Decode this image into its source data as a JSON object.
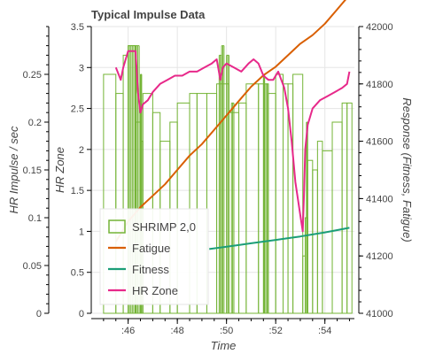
{
  "chart_data": {
    "type": "bar+line",
    "title": "Typical Impulse Data",
    "x_label": "Time",
    "x_ticks": [
      ":46",
      ":48",
      ":50",
      ":52",
      ":54"
    ],
    "x_tick_values": [
      46,
      48,
      50,
      52,
      54
    ],
    "x_range": [
      44.5,
      55.2
    ],
    "y_axes": {
      "outer_left": {
        "label": "HR Impulse / sec",
        "range": [
          0,
          0.3
        ],
        "ticks": [
          "0",
          "0.05",
          "0.1",
          "0.15",
          "0.2",
          "0.25"
        ],
        "tick_values": [
          0,
          0.05,
          0.1,
          0.15,
          0.2,
          0.25
        ]
      },
      "inner_left": {
        "label": "HR Zone",
        "range": [
          0,
          3.5
        ],
        "ticks": [
          "0",
          "0.5",
          "1",
          "1.5",
          "2",
          "2.5",
          "3",
          "3.5"
        ],
        "tick_values": [
          0,
          0.5,
          1,
          1.5,
          2,
          2.5,
          3,
          3.5
        ]
      },
      "right": {
        "label": "Response (Fitness, Fatigue)",
        "range": [
          41000,
          42000
        ],
        "ticks": [
          "41000",
          "41200",
          "41400",
          "41600",
          "41800",
          "42000"
        ],
        "tick_values": [
          41000,
          41200,
          41400,
          41600,
          41800,
          42000
        ]
      }
    },
    "legend": {
      "placement": "bottom-left",
      "items": [
        {
          "label": "SHRIMP 2,0",
          "kind": "box",
          "color": "#74b436"
        },
        {
          "label": "Fatigue",
          "kind": "line",
          "color": "#d95f02"
        },
        {
          "label": "Fitness",
          "kind": "line",
          "color": "#1b9e77"
        },
        {
          "label": "HR Zone",
          "kind": "line",
          "color": "#e7298a"
        }
      ]
    },
    "grid": true,
    "bars": {
      "name": "SHRIMP 2,0",
      "axis": "outer_left",
      "color": "#74b436",
      "steps": [
        [
          45.0,
          0.25
        ],
        [
          45.5,
          0.23
        ],
        [
          45.8,
          0.27
        ],
        [
          46.0,
          0.28
        ],
        [
          46.3,
          0.2
        ],
        [
          46.5,
          0.18
        ],
        [
          46.6,
          0.23
        ],
        [
          47.0,
          0.21
        ],
        [
          47.3,
          0.18
        ],
        [
          47.7,
          0.2
        ],
        [
          48.0,
          0.22
        ],
        [
          48.5,
          0.23
        ],
        [
          48.8,
          0.23
        ],
        [
          49.2,
          0.23
        ],
        [
          49.6,
          0.24
        ],
        [
          50.1,
          0.21
        ],
        [
          50.5,
          0.22
        ],
        [
          50.8,
          0.24
        ],
        [
          51.3,
          0.24
        ],
        [
          51.7,
          0.23
        ],
        [
          52.0,
          0.25
        ],
        [
          52.3,
          0.24
        ],
        [
          52.5,
          0.24
        ],
        [
          52.7,
          0.25
        ],
        [
          53.1,
          0.06
        ],
        [
          53.2,
          0.1
        ],
        [
          53.3,
          0.16
        ],
        [
          53.5,
          0.15
        ],
        [
          53.7,
          0.18
        ],
        [
          53.9,
          0.17
        ],
        [
          54.3,
          0.2
        ],
        [
          54.7,
          0.22
        ],
        [
          54.9,
          0.22
        ]
      ],
      "spikes": [
        [
          46.0,
          46.45,
          0.28
        ],
        [
          46.5,
          46.55,
          0.25
        ],
        [
          49.7,
          49.8,
          0.27
        ],
        [
          49.8,
          49.9,
          0.28
        ],
        [
          50.0,
          50.1,
          0.27
        ],
        [
          50.2,
          50.3,
          0.22
        ],
        [
          51.5,
          51.55,
          0.25
        ],
        [
          51.6,
          51.7,
          0.24
        ],
        [
          53.25,
          53.3,
          0.2
        ]
      ]
    },
    "series": [
      {
        "name": "Fatigue",
        "axis": "right",
        "color": "#d95f02",
        "x": [
          45.5,
          46,
          46.5,
          47,
          47.5,
          48,
          48.5,
          49,
          49.5,
          50,
          50.5,
          51,
          51.5,
          52,
          52.5,
          53,
          53.5,
          54,
          54.5,
          55
        ],
        "y": [
          41250,
          41320,
          41370,
          41410,
          41450,
          41500,
          41550,
          41590,
          41640,
          41690,
          41740,
          41790,
          41830,
          41860,
          41900,
          41940,
          41970,
          42010,
          42060,
          42110
        ]
      },
      {
        "name": "Fitness",
        "axis": "right",
        "color": "#1b9e77",
        "x": [
          49.3,
          50,
          50.5,
          51,
          51.5,
          52,
          52.5,
          53,
          53.5,
          54,
          54.5,
          55
        ],
        "y": [
          41224,
          41232,
          41238,
          41244,
          41250,
          41256,
          41262,
          41268,
          41275,
          41282,
          41290,
          41298
        ]
      },
      {
        "name": "HR Zone",
        "axis": "inner_left",
        "color": "#e7298a",
        "x": [
          45.5,
          45.7,
          45.8,
          46.0,
          46.3,
          46.4,
          46.5,
          46.6,
          46.8,
          47.0,
          47.3,
          47.6,
          47.9,
          48.2,
          48.5,
          48.8,
          49.1,
          49.4,
          49.6,
          49.75,
          49.85,
          50.0,
          50.3,
          50.6,
          50.9,
          51.1,
          51.3,
          51.5,
          51.7,
          51.9,
          52.1,
          52.35,
          52.5,
          52.65,
          52.8,
          53.0,
          53.1,
          53.15,
          53.2,
          53.3,
          53.5,
          53.8,
          54.1,
          54.4,
          54.7,
          54.9,
          55.0
        ],
        "y": [
          3.0,
          2.85,
          3.0,
          3.2,
          3.2,
          2.7,
          2.45,
          2.55,
          2.6,
          2.7,
          2.8,
          2.85,
          2.9,
          2.9,
          2.95,
          2.95,
          3.0,
          3.05,
          3.1,
          2.85,
          3.0,
          3.05,
          3.0,
          2.95,
          3.05,
          3.1,
          3.05,
          2.9,
          2.85,
          2.85,
          2.95,
          2.75,
          2.5,
          2.1,
          1.6,
          1.2,
          1.0,
          1.45,
          2.0,
          2.3,
          2.5,
          2.6,
          2.65,
          2.7,
          2.75,
          2.8,
          2.95
        ]
      }
    ]
  }
}
